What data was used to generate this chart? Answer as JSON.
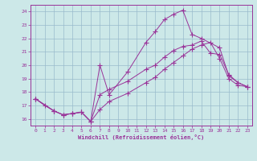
{
  "xlabel": "Windchill (Refroidissement éolien,°C)",
  "xlim": [
    -0.5,
    23.5
  ],
  "ylim": [
    15.5,
    24.5
  ],
  "yticks": [
    16,
    17,
    18,
    19,
    20,
    21,
    22,
    23,
    24
  ],
  "xticks": [
    0,
    1,
    2,
    3,
    4,
    5,
    6,
    7,
    8,
    9,
    10,
    11,
    12,
    13,
    14,
    15,
    16,
    17,
    18,
    19,
    20,
    21,
    22,
    23
  ],
  "bg_color": "#cce8e8",
  "line_color": "#993399",
  "grid_color": "#99bbcc",
  "s1_x": [
    0,
    1,
    2,
    3,
    4,
    5,
    6,
    7,
    8,
    10,
    12,
    13,
    14,
    15,
    16,
    17,
    18,
    20,
    21,
    22,
    23
  ],
  "s1_y": [
    17.5,
    17.0,
    16.6,
    16.3,
    16.4,
    16.5,
    15.8,
    20.0,
    17.8,
    19.5,
    21.7,
    22.5,
    23.4,
    23.8,
    24.1,
    22.3,
    22.0,
    21.3,
    19.2,
    18.7,
    18.4
  ],
  "s2_x": [
    0,
    2,
    3,
    4,
    5,
    6,
    7,
    8,
    10,
    12,
    13,
    14,
    15,
    16,
    17,
    18,
    19,
    20,
    21,
    22,
    23
  ],
  "s2_y": [
    17.5,
    16.6,
    16.3,
    16.4,
    16.5,
    15.8,
    17.8,
    18.2,
    18.8,
    19.7,
    20.0,
    20.6,
    21.1,
    21.4,
    21.5,
    21.8,
    20.9,
    20.8,
    19.3,
    18.7,
    18.4
  ],
  "s3_x": [
    0,
    2,
    3,
    4,
    5,
    6,
    7,
    8,
    10,
    12,
    13,
    14,
    15,
    16,
    17,
    18,
    19,
    20,
    21,
    22,
    23
  ],
  "s3_y": [
    17.5,
    16.6,
    16.3,
    16.4,
    16.5,
    15.8,
    16.7,
    17.3,
    17.9,
    18.7,
    19.1,
    19.7,
    20.2,
    20.7,
    21.2,
    21.5,
    21.7,
    20.5,
    19.0,
    18.5,
    18.4
  ]
}
